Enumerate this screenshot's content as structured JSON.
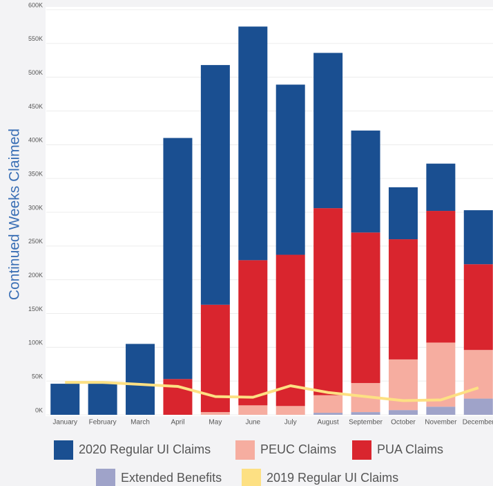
{
  "chart_data": {
    "type": "bar",
    "stacked": true,
    "y_label": "Continued Weeks Claimed",
    "categories": [
      "January",
      "February",
      "March",
      "April",
      "May",
      "June",
      "July",
      "August",
      "September",
      "October",
      "November",
      "December"
    ],
    "series": [
      {
        "name": "2020 Regular UI Claims",
        "color": "#1a4f91",
        "values": [
          46,
          46,
          105,
          357,
          355,
          346,
          252,
          230,
          151,
          77,
          70,
          80
        ]
      },
      {
        "name": "PEUC Claims",
        "color": "#f6ada0",
        "values": [
          0,
          0,
          0,
          0,
          4,
          14,
          13,
          26,
          43,
          75,
          95,
          72
        ]
      },
      {
        "name": "PUA Claims",
        "color": "#d9252e",
        "values": [
          0,
          0,
          0,
          53,
          159,
          215,
          224,
          277,
          223,
          178,
          195,
          127
        ]
      },
      {
        "name": "Extended Benefits",
        "color": "#9fa3c9",
        "values": [
          0,
          0,
          0,
          0,
          0,
          0,
          0,
          3,
          4,
          7,
          12,
          24
        ]
      },
      {
        "name": "2019 Regular UI Claims",
        "color": "#fde083",
        "type": "line",
        "values": [
          48,
          48,
          45,
          42,
          27,
          26,
          43,
          33,
          27,
          21,
          22,
          40
        ]
      }
    ],
    "ylim": [
      0,
      600
    ],
    "yticks": [
      {
        "value": 0,
        "label": "0K"
      },
      {
        "value": 50,
        "label": "50K"
      },
      {
        "value": 100,
        "label": "100K"
      },
      {
        "value": 150,
        "label": "150K"
      },
      {
        "value": 200,
        "label": "200K"
      },
      {
        "value": 250,
        "label": "250K"
      },
      {
        "value": 300,
        "label": "300K"
      },
      {
        "value": 350,
        "label": "350K"
      },
      {
        "value": 400,
        "label": "400K"
      },
      {
        "value": 450,
        "label": "450K"
      },
      {
        "value": 500,
        "label": "500K"
      },
      {
        "value": 550,
        "label": "550K"
      },
      {
        "value": 600,
        "label": "600K"
      }
    ],
    "grid": true
  }
}
